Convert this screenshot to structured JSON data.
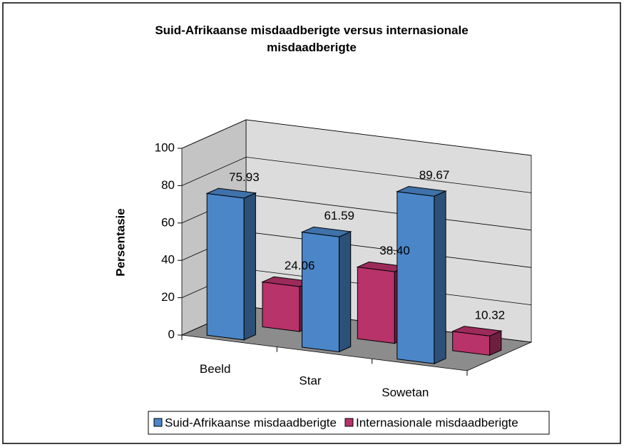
{
  "chart_data": {
    "type": "bar3d",
    "title": "Suid-Afrikaanse misdaadberigte versus internasionale misdaadberigte",
    "y_label": "Persentasie",
    "categories": [
      "Beeld",
      "Star",
      "Sowetan"
    ],
    "series": [
      {
        "name": "Suid-Afrikaanse misdaadberigte",
        "color": "#4a86c8",
        "values": [
          75.93,
          61.59,
          89.67
        ],
        "value_labels": [
          "75.93",
          "61.59",
          "89.67"
        ]
      },
      {
        "name": "Internasionale misdaadberigte",
        "color": "#b8336a",
        "values": [
          24.06,
          38.4,
          10.32
        ],
        "value_labels": [
          "24.06",
          "38.40",
          "10.32"
        ]
      }
    ],
    "ylim": [
      0,
      100
    ],
    "yticks": [
      0,
      20,
      40,
      60,
      80,
      100
    ],
    "grid": true,
    "legend": "bottom"
  }
}
